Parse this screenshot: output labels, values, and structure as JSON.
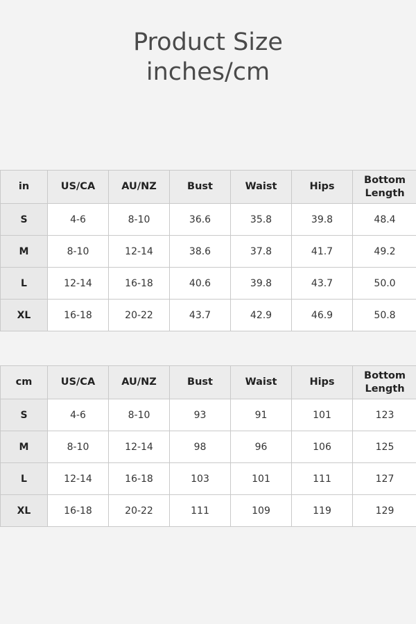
{
  "title": {
    "line1": "Product Size",
    "line2": "inches/cm"
  },
  "tables": [
    {
      "unit": "in",
      "headers": [
        "US/CA",
        "AU/NZ",
        "Bust",
        "Waist",
        "Hips",
        "Bottom Length"
      ],
      "rows": [
        [
          "S",
          "4-6",
          "8-10",
          "36.6",
          "35.8",
          "39.8",
          "48.4"
        ],
        [
          "M",
          "8-10",
          "12-14",
          "38.6",
          "37.8",
          "41.7",
          "49.2"
        ],
        [
          "L",
          "12-14",
          "16-18",
          "40.6",
          "39.8",
          "43.7",
          "50.0"
        ],
        [
          "XL",
          "16-18",
          "20-22",
          "43.7",
          "42.9",
          "46.9",
          "50.8"
        ]
      ]
    },
    {
      "unit": "cm",
      "headers": [
        "US/CA",
        "AU/NZ",
        "Bust",
        "Waist",
        "Hips",
        "Bottom Length"
      ],
      "rows": [
        [
          "S",
          "4-6",
          "8-10",
          "93",
          "91",
          "101",
          "123"
        ],
        [
          "M",
          "8-10",
          "12-14",
          "98",
          "96",
          "106",
          "125"
        ],
        [
          "L",
          "12-14",
          "16-18",
          "103",
          "101",
          "111",
          "127"
        ],
        [
          "XL",
          "16-18",
          "20-22",
          "111",
          "109",
          "119",
          "129"
        ]
      ]
    }
  ]
}
